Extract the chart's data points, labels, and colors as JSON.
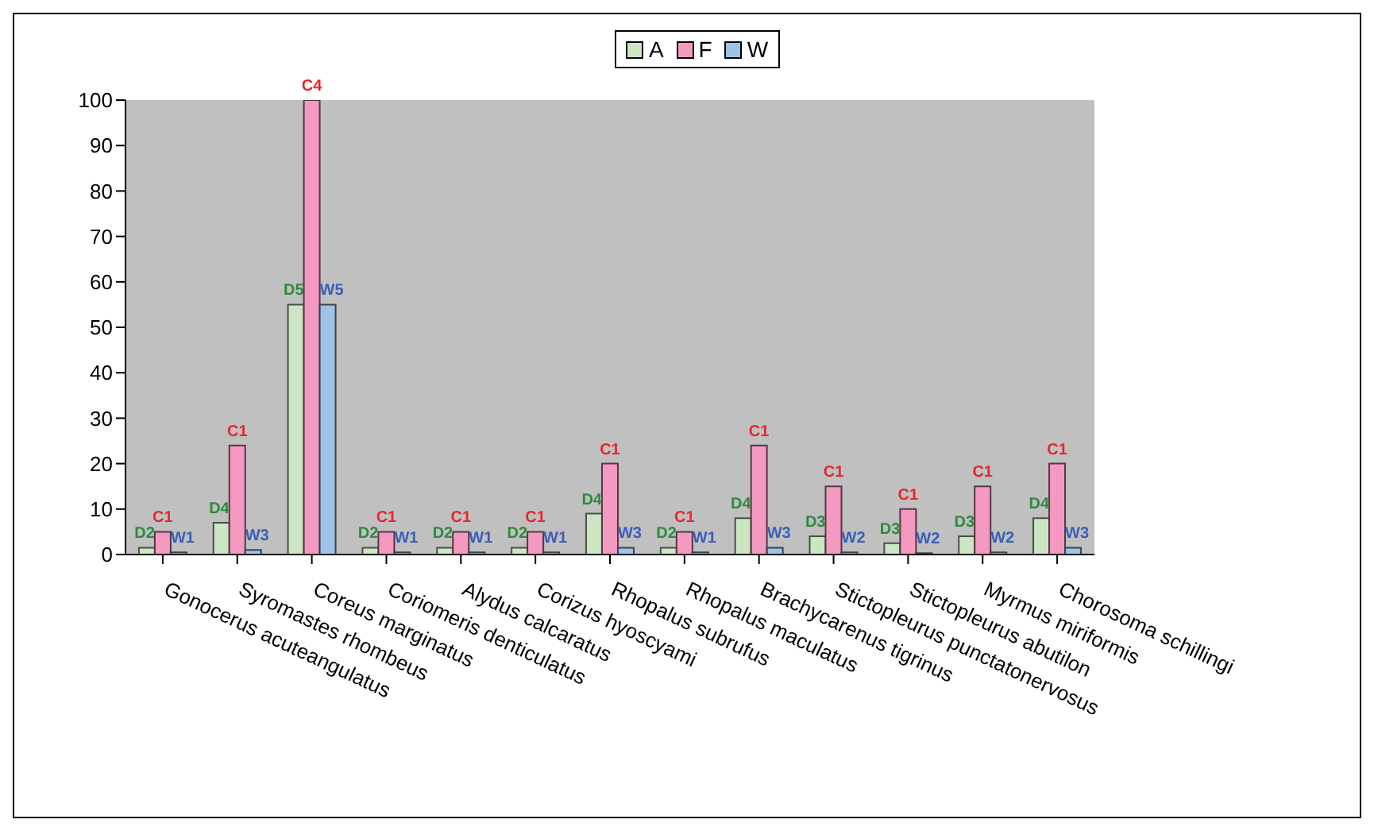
{
  "chart_data": {
    "type": "bar",
    "categories": [
      "Gonocerus acuteangulatus",
      "Syromastes rhombeus",
      "Coreus marginatus",
      "Coriomeris denticulatus",
      "Alydus calcaratus",
      "Corizus hyoscyami",
      "Rhopalus subrufus",
      "Rhopalus maculatus",
      "Brachycarenus tigrinus",
      "Stictopleurus punctatonervosus",
      "Stictopleurus abutilon",
      "Myrmus miriformis",
      "Chorosoma schillingi"
    ],
    "series": [
      {
        "name": "A",
        "color": "#cce6c4",
        "values": [
          1.5,
          7,
          55,
          1.5,
          1.5,
          1.5,
          9,
          1.5,
          8,
          4,
          2.5,
          4,
          8
        ],
        "value_labels": [
          "D2",
          "D4",
          "D5",
          "D2",
          "D2",
          "D2",
          "D4",
          "D2",
          "D4",
          "D3",
          "D3",
          "D3",
          "D4"
        ]
      },
      {
        "name": "F",
        "color": "#f49ac1",
        "values": [
          5,
          24,
          100,
          5,
          5,
          5,
          20,
          5,
          24,
          15,
          10,
          15,
          20
        ],
        "value_labels": [
          "C1",
          "C1",
          "C4",
          "C1",
          "C1",
          "C1",
          "C1",
          "C1",
          "C1",
          "C1",
          "C1",
          "C1",
          "C1"
        ]
      },
      {
        "name": "W",
        "color": "#9dc3e6",
        "values": [
          0.5,
          1,
          55,
          0.5,
          0.5,
          0.5,
          1.5,
          0.5,
          1.5,
          0.5,
          0.3,
          0.5,
          1.5
        ],
        "value_labels": [
          "W1",
          "W3",
          "W5",
          "W1",
          "W1",
          "W1",
          "W3",
          "W1",
          "W3",
          "W2",
          "W2",
          "W2",
          "W3"
        ]
      }
    ],
    "ylim": [
      0,
      100
    ],
    "yticks": [
      0,
      10,
      20,
      30,
      40,
      50,
      60,
      70,
      80,
      90,
      100
    ],
    "grid": false,
    "legend": "top"
  }
}
